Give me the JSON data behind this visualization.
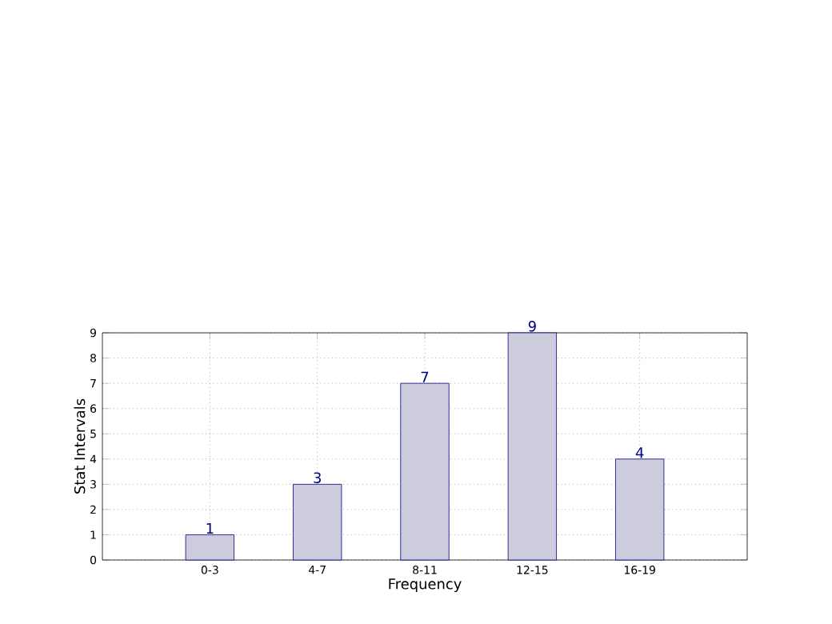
{
  "chart_data": {
    "type": "bar",
    "xlabel": "Frequency",
    "ylabel": "Stat Intervals",
    "categories": [
      "0-3",
      "4-7",
      "8-11",
      "12-15",
      "16-19"
    ],
    "values": [
      1,
      3,
      7,
      9,
      4
    ],
    "color": "#ccccdd",
    "ylim": [
      0,
      9
    ],
    "yticks": [
      0,
      1,
      2,
      3,
      4,
      5,
      6,
      7,
      8,
      9
    ],
    "grid": true,
    "data_labels": true
  }
}
